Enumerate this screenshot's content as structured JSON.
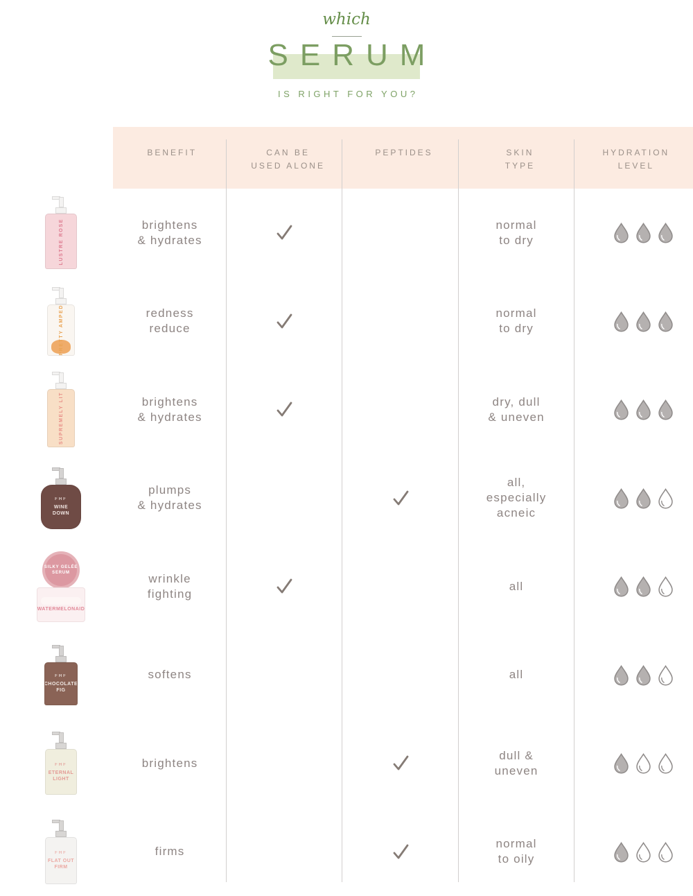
{
  "header": {
    "eyebrow": "which",
    "title": "SERUM",
    "subtitle": "IS RIGHT FOR YOU?"
  },
  "colors": {
    "accent_green": "#7c9e62",
    "eyebrow_green": "#648d48",
    "subtitle_green": "#7ea266",
    "title_band_green": "#dfe9cb",
    "header_band_peach": "#fcebe1",
    "table_text": "#8e8583",
    "column_header_text": "#9b9089",
    "grid_line": "#d2cfce",
    "check": "#857b75",
    "drop_fill": "#b5b1b0",
    "drop_stroke": "#908c8b"
  },
  "table": {
    "columns": [
      {
        "id": "benefit",
        "label_lines": [
          "BENEFIT"
        ]
      },
      {
        "id": "can-be-used-alone",
        "label_lines": [
          "CAN BE",
          "USED ALONE"
        ]
      },
      {
        "id": "peptides",
        "label_lines": [
          "PEPTIDES"
        ]
      },
      {
        "id": "skin-type",
        "label_lines": [
          "SKIN",
          "TYPE"
        ]
      },
      {
        "id": "hydration-level",
        "label_lines": [
          "HYDRATION",
          "LEVEL"
        ]
      }
    ],
    "rows": [
      {
        "product": {
          "name": "Lustre Rose",
          "type": "pump",
          "orientation": "vertical",
          "label_lines": [
            "LUSTRE ROSE"
          ],
          "body_color": "#f6d6da",
          "cap_color": "#f4f3f2",
          "label_color": "#dd7b90",
          "body_w": 46,
          "body_h": 80
        },
        "benefit_lines": [
          "brightens",
          "& hydrates"
        ],
        "can_be_used_alone": true,
        "peptides": false,
        "skin_type_lines": [
          "normal",
          "to dry"
        ],
        "hydration_filled": 3,
        "hydration_total": 3
      },
      {
        "product": {
          "name": "Pretty Amped",
          "type": "pump",
          "orientation": "vertical",
          "label_lines": [
            "PRETTY AMPED"
          ],
          "body_color": "#faf6f1",
          "cap_color": "#f4f3f2",
          "label_color": "#e9a353",
          "liquid_color": "#eda45b",
          "body_w": 40,
          "body_h": 74
        },
        "benefit_lines": [
          "redness",
          "reduce"
        ],
        "can_be_used_alone": true,
        "peptides": false,
        "skin_type_lines": [
          "normal",
          "to dry"
        ],
        "hydration_filled": 3,
        "hydration_total": 3
      },
      {
        "product": {
          "name": "Supremely Lit",
          "type": "pump",
          "orientation": "vertical",
          "label_lines": [
            "SUPREMELY LIT"
          ],
          "body_color": "#f8dfc6",
          "cap_color": "#f4f3f2",
          "label_color": "#e78f88",
          "body_w": 40,
          "body_h": 84
        },
        "benefit_lines": [
          "brightens",
          "& hydrates"
        ],
        "can_be_used_alone": true,
        "peptides": false,
        "skin_type_lines": [
          "dry, dull",
          "& uneven"
        ],
        "hydration_filled": 3,
        "hydration_total": 3
      },
      {
        "product": {
          "name": "Wine Down",
          "type": "pump",
          "orientation": "horizontal",
          "rounded": true,
          "label_lines": [
            "FHF",
            "WINE",
            "DOWN"
          ],
          "body_color": "#6f4b45",
          "cap_color": "#d5d3d2",
          "label_color": "#f0e5e1",
          "body_w": 58,
          "body_h": 64
        },
        "benefit_lines": [
          "plumps",
          "& hydrates"
        ],
        "can_be_used_alone": false,
        "peptides": true,
        "skin_type_lines": [
          "all,",
          "especially",
          "acneic"
        ],
        "hydration_filled": 2,
        "hydration_total": 3
      },
      {
        "product": {
          "name": "Watermelonaid",
          "type": "jar",
          "lid_label_lines": [
            "SILKY GELÉE",
            "SERUM"
          ],
          "label_lines": [
            "WATERMELONAID"
          ],
          "lid_color": "#dc98a1",
          "body_color": "#fbf0f1",
          "label_color": "#e18897"
        },
        "benefit_lines": [
          "wrinkle",
          "fighting"
        ],
        "can_be_used_alone": true,
        "peptides": false,
        "skin_type_lines": [
          "all"
        ],
        "hydration_filled": 2,
        "hydration_total": 3
      },
      {
        "product": {
          "name": "Chocolate Fig",
          "type": "pump",
          "orientation": "horizontal",
          "label_lines": [
            "FHF",
            "CHOCOLATE",
            "FIG"
          ],
          "body_color": "#8a6356",
          "cap_color": "#d5d3d2",
          "label_color": "#f1eae6",
          "body_w": 48,
          "body_h": 62
        },
        "benefit_lines": [
          "softens"
        ],
        "can_be_used_alone": false,
        "peptides": false,
        "skin_type_lines": [
          "all"
        ],
        "hydration_filled": 2,
        "hydration_total": 3
      },
      {
        "product": {
          "name": "Eternal Light",
          "type": "pump",
          "orientation": "horizontal",
          "label_lines": [
            "FHF",
            "ETERNAL",
            "LIGHT"
          ],
          "body_color": "#f0eede",
          "cap_color": "#d8d6d4",
          "label_color": "#e39a94",
          "body_w": 46,
          "body_h": 66
        },
        "benefit_lines": [
          "brightens"
        ],
        "can_be_used_alone": false,
        "peptides": true,
        "skin_type_lines": [
          "dull &",
          "uneven"
        ],
        "hydration_filled": 1,
        "hydration_total": 3
      },
      {
        "product": {
          "name": "Flat Out Firm",
          "type": "pump",
          "orientation": "horizontal",
          "label_lines": [
            "FHF",
            "FLAT OUT",
            "FIRM"
          ],
          "body_color": "#f4f3f1",
          "cap_color": "#d8d6d4",
          "label_color": "#eba8a2",
          "body_w": 46,
          "body_h": 68
        },
        "benefit_lines": [
          "firms"
        ],
        "can_be_used_alone": false,
        "peptides": true,
        "skin_type_lines": [
          "normal",
          "to oily"
        ],
        "hydration_filled": 1,
        "hydration_total": 3
      }
    ]
  },
  "chart_data": {
    "type": "table",
    "title": "which SERUM is right for you?",
    "columns": [
      "BENEFIT",
      "CAN BE USED ALONE",
      "PEPTIDES",
      "SKIN TYPE",
      "HYDRATION LEVEL"
    ],
    "rows": [
      {
        "product": "Lustre Rose",
        "benefit": "brightens & hydrates",
        "can_be_used_alone": true,
        "peptides": false,
        "skin_type": "normal to dry",
        "hydration_level": 3,
        "hydration_max": 3
      },
      {
        "product": "Pretty Amped",
        "benefit": "redness reduce",
        "can_be_used_alone": true,
        "peptides": false,
        "skin_type": "normal to dry",
        "hydration_level": 3,
        "hydration_max": 3
      },
      {
        "product": "Supremely Lit",
        "benefit": "brightens & hydrates",
        "can_be_used_alone": true,
        "peptides": false,
        "skin_type": "dry, dull & uneven",
        "hydration_level": 3,
        "hydration_max": 3
      },
      {
        "product": "Wine Down",
        "benefit": "plumps & hydrates",
        "can_be_used_alone": false,
        "peptides": true,
        "skin_type": "all, especially acneic",
        "hydration_level": 2,
        "hydration_max": 3
      },
      {
        "product": "Watermelonaid",
        "benefit": "wrinkle fighting",
        "can_be_used_alone": true,
        "peptides": false,
        "skin_type": "all",
        "hydration_level": 2,
        "hydration_max": 3
      },
      {
        "product": "Chocolate Fig",
        "benefit": "softens",
        "can_be_used_alone": false,
        "peptides": false,
        "skin_type": "all",
        "hydration_level": 2,
        "hydration_max": 3
      },
      {
        "product": "Eternal Light",
        "benefit": "brightens",
        "can_be_used_alone": false,
        "peptides": true,
        "skin_type": "dull & uneven",
        "hydration_level": 1,
        "hydration_max": 3
      },
      {
        "product": "Flat Out Firm",
        "benefit": "firms",
        "can_be_used_alone": false,
        "peptides": true,
        "skin_type": "normal to oily",
        "hydration_level": 1,
        "hydration_max": 3
      }
    ]
  }
}
